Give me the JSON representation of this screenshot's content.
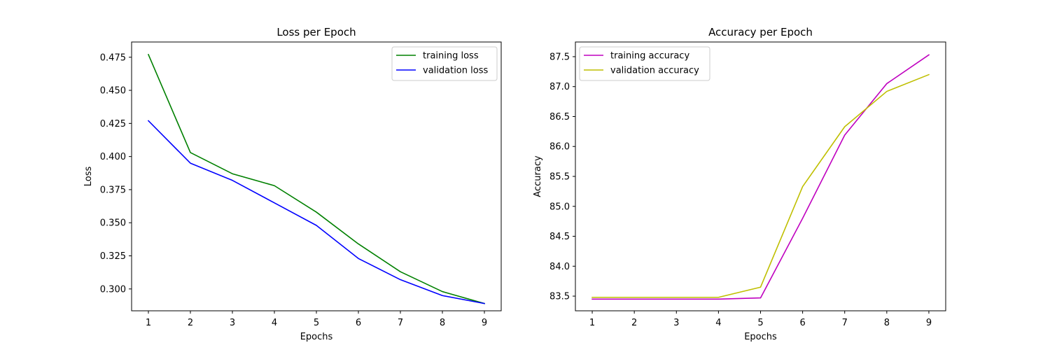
{
  "chart_data": [
    {
      "type": "line",
      "title": "Loss per Epoch",
      "xlabel": "Epochs",
      "ylabel": "Loss",
      "x": [
        1,
        2,
        3,
        4,
        5,
        6,
        7,
        8,
        9
      ],
      "xlim": [
        0.6,
        9.4
      ],
      "ylim": [
        0.2835,
        0.4865
      ],
      "xticks": [
        "1",
        "2",
        "3",
        "4",
        "5",
        "6",
        "7",
        "8",
        "9"
      ],
      "yticks": [
        "0.300",
        "0.325",
        "0.350",
        "0.375",
        "0.400",
        "0.425",
        "0.450",
        "0.475"
      ],
      "ytick_values": [
        0.3,
        0.325,
        0.35,
        0.375,
        0.4,
        0.425,
        0.45,
        0.475
      ],
      "grid": false,
      "legend_position": "top-right",
      "series": [
        {
          "name": "training loss",
          "color": "#008000",
          "values": [
            0.477,
            0.403,
            0.387,
            0.378,
            0.358,
            0.334,
            0.313,
            0.298,
            0.289
          ]
        },
        {
          "name": "validation loss",
          "color": "#0000ff",
          "values": [
            0.427,
            0.395,
            0.382,
            0.365,
            0.348,
            0.323,
            0.307,
            0.295,
            0.289
          ]
        }
      ]
    },
    {
      "type": "line",
      "title": "Accuracy per Epoch",
      "xlabel": "Epochs",
      "ylabel": "Accuracy",
      "x": [
        1,
        2,
        3,
        4,
        5,
        6,
        7,
        8,
        9
      ],
      "xlim": [
        0.6,
        9.4
      ],
      "ylim": [
        83.255,
        87.745
      ],
      "xticks": [
        "1",
        "2",
        "3",
        "4",
        "5",
        "6",
        "7",
        "8",
        "9"
      ],
      "yticks": [
        "83.5",
        "84.0",
        "84.5",
        "85.0",
        "85.5",
        "86.0",
        "86.5",
        "87.0",
        "87.5"
      ],
      "ytick_values": [
        83.5,
        84.0,
        84.5,
        85.0,
        85.5,
        86.0,
        86.5,
        87.0,
        87.5
      ],
      "grid": false,
      "legend_position": "top-left",
      "series": [
        {
          "name": "training accuracy",
          "color": "#bf00bf",
          "values": [
            83.45,
            83.45,
            83.45,
            83.45,
            83.47,
            84.8,
            86.19,
            87.05,
            87.53
          ]
        },
        {
          "name": "validation accuracy",
          "color": "#bfbf00",
          "values": [
            83.48,
            83.48,
            83.48,
            83.48,
            83.65,
            85.33,
            86.33,
            86.92,
            87.2
          ]
        }
      ]
    }
  ]
}
